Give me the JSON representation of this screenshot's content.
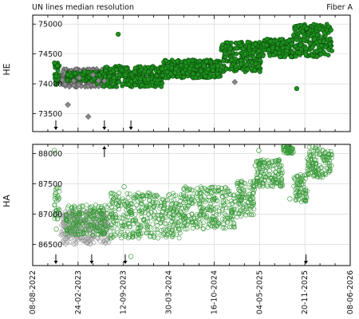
{
  "header": {
    "left": "UN lines median resolution",
    "right": "Fiber A"
  },
  "colors": {
    "green_fill": "#1f8f1f",
    "green_edge": "#0a4f0a",
    "gray_fill": "#8a8a8a",
    "gray_edge": "#555555",
    "green_open": "#3a9a3a",
    "gray_open": "#9a9a9a",
    "grid": "#d9d9d9"
  },
  "chart_data": [
    {
      "type": "scatter",
      "name": "HE panel",
      "ylabel": "HE",
      "ylim": [
        73200,
        75150
      ],
      "yticks": [
        73500,
        74000,
        74500,
        75000
      ],
      "ytick_labels": [
        "73500",
        "74000",
        "74500",
        "75000"
      ],
      "grid": true,
      "marker": "filled",
      "series": [
        {
          "color": "green",
          "points": [
            [
              "2022-11-12",
              74350
            ],
            [
              "2022-11-18",
              74050
            ],
            [
              "2022-11-25",
              74300
            ],
            [
              "2023-01-10",
              74150
            ],
            [
              "2023-02-20",
              74100
            ],
            [
              "2023-03-25",
              74200
            ],
            [
              "2023-04-20",
              74150
            ],
            [
              "2023-05-20",
              74000
            ],
            [
              "2023-07-01",
              74050
            ],
            [
              "2023-08-01",
              74100
            ],
            [
              "2023-08-20",
              74830
            ],
            [
              "2023-09-20",
              74150
            ],
            [
              "2023-11-01",
              74200
            ],
            [
              "2024-01-01",
              74200
            ],
            [
              "2024-03-01",
              74250
            ],
            [
              "2024-05-01",
              74250
            ],
            [
              "2024-07-01",
              74250
            ],
            [
              "2024-09-01",
              74300
            ],
            [
              "2024-11-01",
              74300
            ],
            [
              "2025-01-01",
              74400
            ],
            [
              "2025-03-01",
              74500
            ],
            [
              "2025-05-01",
              74550
            ],
            [
              "2025-07-01",
              74600
            ],
            [
              "2025-09-01",
              74550
            ],
            [
              "2025-10-15",
              73920
            ],
            [
              "2025-11-01",
              74650
            ],
            [
              "2026-01-01",
              74750
            ],
            [
              "2026-02-15",
              74850
            ],
            [
              "2026-03-15",
              74900
            ]
          ]
        },
        {
          "color": "gray",
          "points": [
            [
              "2023-01-10",
              73650
            ],
            [
              "2023-02-05",
              74050
            ],
            [
              "2023-03-01",
              74100
            ],
            [
              "2023-04-10",
              73450
            ],
            [
              "2023-05-01",
              74150
            ],
            [
              "2023-05-25",
              74050
            ],
            [
              "2023-06-20",
              74050
            ],
            [
              "2025-01-15",
              74030
            ]
          ]
        }
      ],
      "bands": [
        {
          "x_start": "2022-11-10",
          "x_end": "2022-12-05",
          "y_low": 73980,
          "y_high": 74350,
          "color": "green"
        },
        {
          "x_start": "2022-12-15",
          "x_end": "2023-06-25",
          "y_low": 73950,
          "y_high": 74250,
          "color": "gray"
        },
        {
          "x_start": "2023-01-05",
          "x_end": "2023-06-15",
          "y_low": 74050,
          "y_high": 74200,
          "color": "green"
        },
        {
          "x_start": "2023-06-15",
          "x_end": "2024-03-01",
          "y_low": 73950,
          "y_high": 74300,
          "color": "green"
        },
        {
          "x_start": "2024-03-01",
          "x_end": "2024-11-15",
          "y_low": 74100,
          "y_high": 74400,
          "color": "green"
        },
        {
          "x_start": "2024-11-15",
          "x_end": "2025-05-10",
          "y_low": 74200,
          "y_high": 74700,
          "color": "green"
        },
        {
          "x_start": "2025-05-10",
          "x_end": "2025-10-01",
          "y_low": 74450,
          "y_high": 74750,
          "color": "green"
        },
        {
          "x_start": "2025-10-01",
          "x_end": "2026-03-20",
          "y_low": 74450,
          "y_high": 75000,
          "color": "green"
        }
      ],
      "arrows": [
        {
          "x": "2022-11-18",
          "direction": "down"
        },
        {
          "x": "2023-06-20",
          "direction": "down"
        },
        {
          "x": "2023-10-15",
          "direction": "down"
        }
      ]
    },
    {
      "type": "scatter",
      "name": "HA panel",
      "ylabel": "HA",
      "xlabel": "",
      "ylim": [
        86150,
        88150
      ],
      "yticks": [
        86500,
        87000,
        87500,
        88000
      ],
      "ytick_labels": [
        "86500",
        "87000",
        "87500",
        "88000"
      ],
      "grid": true,
      "marker": "open",
      "series": [
        {
          "color": "green",
          "points": [
            [
              "2022-11-12",
              88050
            ],
            [
              "2022-11-15",
              87250
            ],
            [
              "2022-11-20",
              86750
            ],
            [
              "2023-03-01",
              87100
            ],
            [
              "2023-06-01",
              86900
            ],
            [
              "2023-09-15",
              87450
            ],
            [
              "2023-10-15",
              86300
            ],
            [
              "2024-01-01",
              87000
            ],
            [
              "2024-05-01",
              87050
            ],
            [
              "2024-09-01",
              87050
            ],
            [
              "2024-12-01",
              87150
            ],
            [
              "2025-02-01",
              87300
            ],
            [
              "2025-04-15",
              87800
            ],
            [
              "2025-05-01",
              88050
            ],
            [
              "2025-06-15",
              87650
            ],
            [
              "2025-08-01",
              87800
            ],
            [
              "2025-09-15",
              87250
            ],
            [
              "2025-11-01",
              87650
            ],
            [
              "2026-01-01",
              87900
            ],
            [
              "2026-03-01",
              87750
            ]
          ]
        },
        {
          "color": "gray",
          "points": [
            [
              "2022-12-20",
              86850
            ],
            [
              "2023-02-01",
              86700
            ],
            [
              "2023-04-01",
              86800
            ],
            [
              "2023-05-20",
              86600
            ],
            [
              "2023-07-01",
              86850
            ]
          ]
        }
      ],
      "bands": [
        {
          "x_start": "2022-11-10",
          "x_end": "2022-12-05",
          "y_low": 86900,
          "y_high": 87450,
          "color": "green"
        },
        {
          "x_start": "2022-12-10",
          "x_end": "2023-07-10",
          "y_low": 86500,
          "y_high": 87050,
          "color": "gray"
        },
        {
          "x_start": "2023-01-01",
          "x_end": "2023-07-01",
          "y_low": 86650,
          "y_high": 87150,
          "color": "green"
        },
        {
          "x_start": "2023-07-10",
          "x_end": "2024-06-01",
          "y_low": 86600,
          "y_high": 87350,
          "color": "green"
        },
        {
          "x_start": "2024-06-01",
          "x_end": "2025-01-15",
          "y_low": 86750,
          "y_high": 87450,
          "color": "green"
        },
        {
          "x_start": "2025-01-15",
          "x_end": "2025-04-15",
          "y_low": 86950,
          "y_high": 87550,
          "color": "green"
        },
        {
          "x_start": "2025-04-20",
          "x_end": "2025-08-15",
          "y_low": 87450,
          "y_high": 87900,
          "color": "green"
        },
        {
          "x_start": "2025-08-15",
          "x_end": "2025-10-01",
          "y_low": 88000,
          "y_high": 88120,
          "color": "green"
        },
        {
          "x_start": "2025-10-01",
          "x_end": "2025-12-01",
          "y_low": 87200,
          "y_high": 87650,
          "color": "green"
        },
        {
          "x_start": "2025-12-01",
          "x_end": "2026-03-20",
          "y_low": 87600,
          "y_high": 88120,
          "color": "green"
        }
      ],
      "arrows": [
        {
          "x": "2022-11-18",
          "direction": "down"
        },
        {
          "x": "2023-04-25",
          "direction": "down"
        },
        {
          "x": "2023-09-20",
          "direction": "down"
        },
        {
          "x": "2025-11-25",
          "direction": "down"
        },
        {
          "x": "2023-06-20",
          "direction": "up"
        }
      ]
    }
  ],
  "x_axis": {
    "min": "2022-08-08",
    "max": "2026-06-08",
    "ticks": [
      "08-08-2022",
      "24-02-2023",
      "12-09-2023",
      "30-03-2024",
      "16-10-2024",
      "04-05-2025",
      "20-11-2025",
      "08-06-2026"
    ],
    "tick_dates": [
      "2022-08-08",
      "2023-02-24",
      "2023-09-12",
      "2024-03-30",
      "2024-10-16",
      "2025-05-04",
      "2025-11-20",
      "2026-06-08"
    ]
  }
}
